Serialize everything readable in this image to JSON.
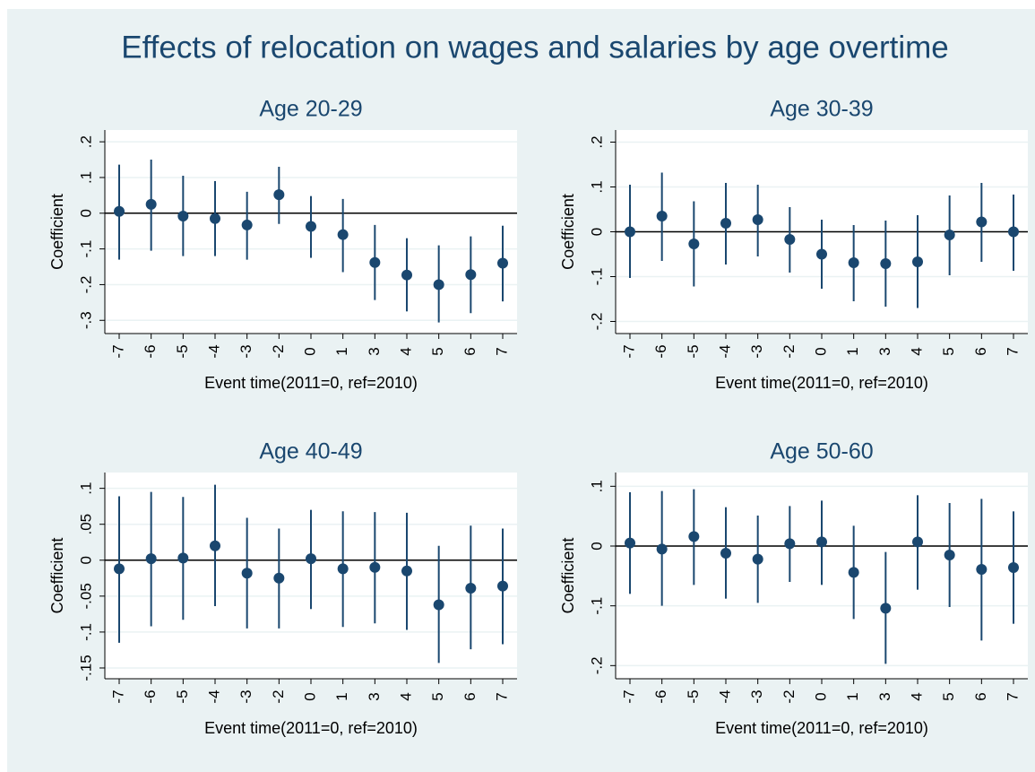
{
  "title": "Effects of relocation on wages and salaries by age overtime",
  "chart_data": [
    {
      "type": "errorbar",
      "title": "Age 20-29",
      "x_label": "Event time(2011=0, ref=2010)",
      "y_label": "Coefficient",
      "categories": [
        "-7",
        "-6",
        "-5",
        "-4",
        "-3",
        "-2",
        "0",
        "1",
        "3",
        "4",
        "5",
        "6",
        "7"
      ],
      "values": [
        0.005,
        0.025,
        -0.008,
        -0.015,
        -0.033,
        0.052,
        -0.037,
        -0.06,
        -0.138,
        -0.173,
        -0.2,
        -0.172,
        -0.14
      ],
      "lower": [
        -0.13,
        -0.105,
        -0.12,
        -0.12,
        -0.13,
        -0.03,
        -0.125,
        -0.165,
        -0.243,
        -0.275,
        -0.306,
        -0.28,
        -0.247
      ],
      "upper": [
        0.136,
        0.15,
        0.105,
        0.09,
        0.06,
        0.13,
        0.048,
        0.04,
        -0.033,
        -0.07,
        -0.09,
        -0.065,
        -0.035
      ],
      "ylim": [
        -0.337,
        0.233
      ],
      "yticks": [
        {
          "value": 0.2,
          "label": ".2"
        },
        {
          "value": 0.1,
          "label": ".1"
        },
        0,
        {
          "value": -0.1,
          "label": "-.1"
        },
        {
          "value": -0.2,
          "label": "-.2"
        },
        {
          "value": -0.3,
          "label": "-.3"
        }
      ],
      "refline": 0,
      "grid": true,
      "color": "#1a476f"
    },
    {
      "type": "errorbar",
      "title": "Age 30-39",
      "x_label": "Event time(2011=0, ref=2010)",
      "y_label": "Coefficient",
      "categories": [
        "-7",
        "-6",
        "-5",
        "-4",
        "-3",
        "-2",
        "0",
        "1",
        "3",
        "4",
        "5",
        "6",
        "7"
      ],
      "values": [
        0,
        0.035,
        -0.027,
        0.019,
        0.027,
        -0.017,
        -0.05,
        -0.069,
        -0.071,
        -0.067,
        -0.007,
        0.022,
        0
      ],
      "lower": [
        -0.103,
        -0.065,
        -0.122,
        -0.073,
        -0.055,
        -0.091,
        -0.127,
        -0.155,
        -0.167,
        -0.17,
        -0.097,
        -0.067,
        -0.087
      ],
      "upper": [
        0.105,
        0.132,
        0.068,
        0.109,
        0.105,
        0.055,
        0.027,
        0.015,
        0.025,
        0.037,
        0.081,
        0.109,
        0.083
      ],
      "ylim": [
        -0.227,
        0.227
      ],
      "yticks": [
        {
          "value": 0.2,
          "label": ".2"
        },
        {
          "value": 0.1,
          "label": ".1"
        },
        0,
        {
          "value": -0.1,
          "label": "-.1"
        },
        {
          "value": -0.2,
          "label": "-.2"
        }
      ],
      "refline": 0,
      "grid": true,
      "color": "#1a476f"
    },
    {
      "type": "errorbar",
      "title": "Age 40-49",
      "x_label": "Event time(2011=0, ref=2010)",
      "y_label": "Coefficient",
      "categories": [
        "-7",
        "-6",
        "-5",
        "-4",
        "-3",
        "-2",
        "0",
        "1",
        "3",
        "4",
        "5",
        "6",
        "7"
      ],
      "values": [
        -0.012,
        0.002,
        0.003,
        0.02,
        -0.018,
        -0.025,
        0.002,
        -0.012,
        -0.01,
        -0.015,
        -0.062,
        -0.039,
        -0.036
      ],
      "lower": [
        -0.115,
        -0.092,
        -0.083,
        -0.064,
        -0.095,
        -0.095,
        -0.068,
        -0.093,
        -0.088,
        -0.097,
        -0.143,
        -0.124,
        -0.117
      ],
      "upper": [
        0.089,
        0.095,
        0.088,
        0.105,
        0.059,
        0.044,
        0.07,
        0.068,
        0.067,
        0.066,
        0.02,
        0.048,
        0.044
      ],
      "ylim": [
        -0.165,
        0.122
      ],
      "yticks": [
        {
          "value": 0.1,
          "label": ".1"
        },
        {
          "value": 0.05,
          "label": ".05"
        },
        0,
        {
          "value": -0.05,
          "label": "-.05"
        },
        {
          "value": -0.1,
          "label": "-.1"
        },
        {
          "value": -0.15,
          "label": "-.15"
        }
      ],
      "refline": 0,
      "grid": true,
      "color": "#1a476f"
    },
    {
      "type": "errorbar",
      "title": "Age 50-60",
      "x_label": "Event time(2011=0, ref=2010)",
      "y_label": "Coefficient",
      "categories": [
        "-7",
        "-6",
        "-5",
        "-4",
        "-3",
        "-2",
        "0",
        "1",
        "3",
        "4",
        "5",
        "6",
        "7"
      ],
      "values": [
        0.005,
        -0.005,
        0.016,
        -0.012,
        -0.022,
        0.004,
        0.007,
        -0.044,
        -0.104,
        0.007,
        -0.015,
        -0.039,
        -0.036
      ],
      "lower": [
        -0.08,
        -0.1,
        -0.065,
        -0.088,
        -0.095,
        -0.06,
        -0.065,
        -0.122,
        -0.197,
        -0.073,
        -0.102,
        -0.158,
        -0.13
      ],
      "upper": [
        0.09,
        0.092,
        0.095,
        0.065,
        0.051,
        0.067,
        0.076,
        0.034,
        -0.01,
        0.085,
        0.072,
        0.079,
        0.058
      ],
      "ylim": [
        -0.222,
        0.123
      ],
      "yticks": [
        {
          "value": 0.1,
          "label": ".1"
        },
        0,
        {
          "value": -0.1,
          "label": "-.1"
        },
        {
          "value": -0.2,
          "label": "-.2"
        }
      ],
      "refline": 0,
      "grid": true,
      "color": "#1a476f"
    }
  ]
}
